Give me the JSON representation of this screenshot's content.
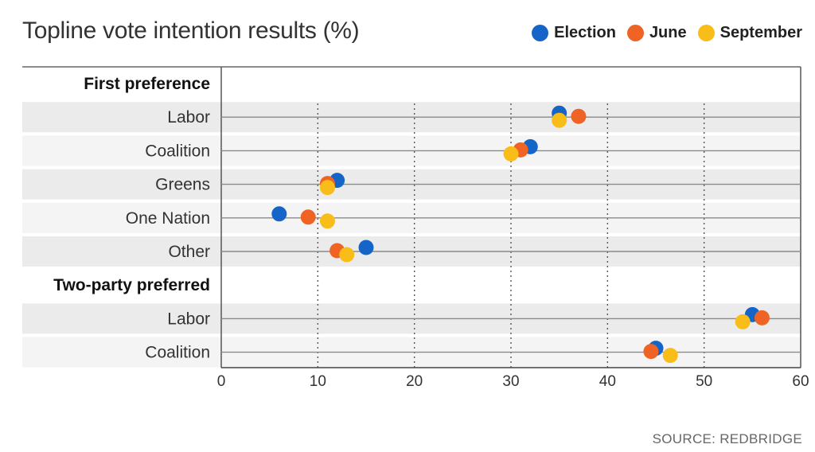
{
  "header": {
    "title": "Topline vote intention results (%)"
  },
  "footer": {
    "source": "SOURCE: REDBRIDGE"
  },
  "colors": {
    "Election": "#1565c8",
    "June": "#ef6325",
    "September": "#f9bd1a"
  },
  "chart_data": {
    "type": "scatter",
    "title": "Topline vote intention results (%)",
    "xlabel": "",
    "ylabel": "",
    "xlim": [
      0,
      60
    ],
    "xticks": [
      0,
      10,
      20,
      30,
      40,
      50,
      60
    ],
    "grid": true,
    "legend_position": "top-right",
    "legend": [
      "Election",
      "June",
      "September"
    ],
    "groups": [
      {
        "label": "First preference",
        "rows": [
          {
            "label": "Labor",
            "values": {
              "Election": 35,
              "June": 37,
              "September": 35
            }
          },
          {
            "label": "Coalition",
            "values": {
              "Election": 32,
              "June": 31,
              "September": 30
            }
          },
          {
            "label": "Greens",
            "values": {
              "Election": 12,
              "June": 11,
              "September": 11
            }
          },
          {
            "label": "One Nation",
            "values": {
              "Election": 6,
              "June": 9,
              "September": 11
            }
          },
          {
            "label": "Other",
            "values": {
              "Election": 15,
              "June": 12,
              "September": 13
            }
          }
        ]
      },
      {
        "label": "Two-party preferred",
        "rows": [
          {
            "label": "Labor",
            "values": {
              "Election": 55,
              "June": 56,
              "September": 54
            }
          },
          {
            "label": "Coalition",
            "values": {
              "Election": 45,
              "June": 44.5,
              "September": 46.5
            }
          }
        ]
      }
    ]
  }
}
